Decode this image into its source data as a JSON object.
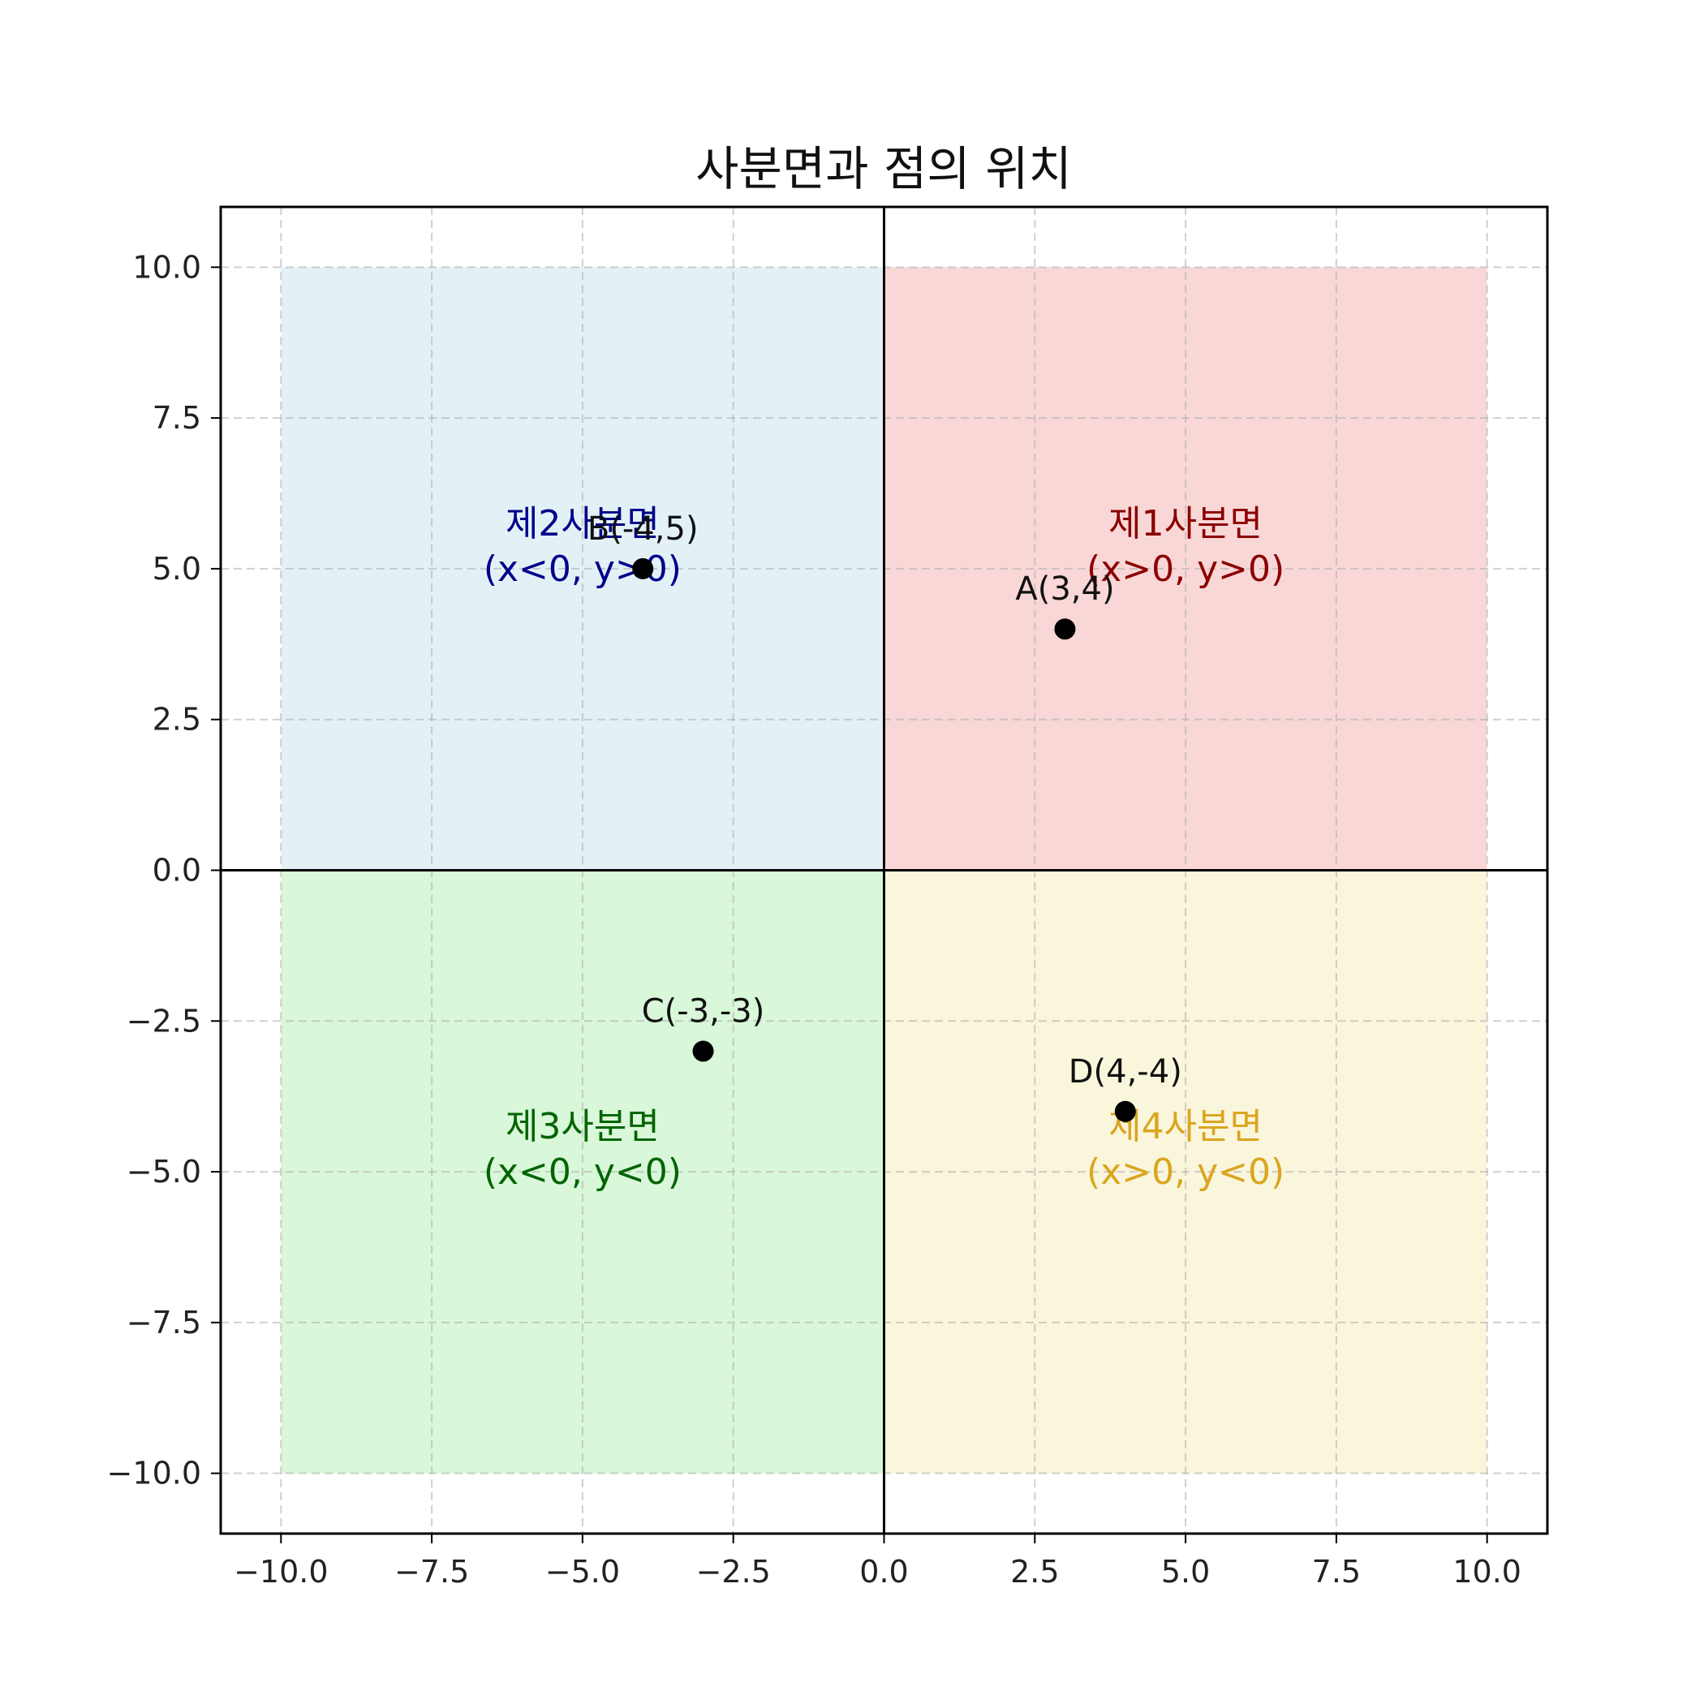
{
  "chart_data": {
    "type": "scatter",
    "title": "사분면과 점의 위치",
    "xlabel": "",
    "ylabel": "",
    "xlim": [
      -11,
      11
    ],
    "ylim": [
      -11,
      11
    ],
    "grid": true,
    "x_ticks": [
      -10,
      -7.5,
      -5,
      -2.5,
      0,
      2.5,
      5,
      7.5,
      10
    ],
    "y_ticks": [
      -10,
      -7.5,
      -5,
      -2.5,
      0,
      2.5,
      5,
      7.5,
      10
    ],
    "x_tick_labels": [
      "−10.0",
      "−7.5",
      "−5.0",
      "−2.5",
      "0.0",
      "2.5",
      "5.0",
      "7.5",
      "10.0"
    ],
    "y_tick_labels": [
      "−10.0",
      "−7.5",
      "−5.0",
      "−2.5",
      "0.0",
      "2.5",
      "5.0",
      "7.5",
      "10.0"
    ],
    "quadrants": [
      {
        "id": "q1",
        "x_range": [
          0,
          10
        ],
        "y_range": [
          0,
          10
        ],
        "fill": "#f4b6b6",
        "text_color": "#8b0000",
        "label_x": 5,
        "label_y": 5.5,
        "line1": "제1사분면",
        "line2": "(x>0, y>0)"
      },
      {
        "id": "q2",
        "x_range": [
          -10,
          0
        ],
        "y_range": [
          0,
          10
        ],
        "fill": "#cce6ef",
        "text_color": "#00008b",
        "label_x": -5,
        "label_y": 5.5,
        "line1": "제2사분면",
        "line2": "(x<0, y>0)"
      },
      {
        "id": "q3",
        "x_range": [
          -10,
          0
        ],
        "y_range": [
          -10,
          0
        ],
        "fill": "#b9f0b9",
        "text_color": "#006400",
        "label_x": -5,
        "label_y": -4.5,
        "line1": "제3사분면",
        "line2": "(x<0, y<0)"
      },
      {
        "id": "q4",
        "x_range": [
          0,
          10
        ],
        "y_range": [
          -10,
          0
        ],
        "fill": "#f6efbe",
        "text_color": "#daa520",
        "label_x": 5,
        "label_y": -4.5,
        "line1": "제4사분면",
        "line2": "(x>0, y<0)"
      }
    ],
    "points": [
      {
        "name": "A",
        "x": 3,
        "y": 4,
        "label": "A(3,4)"
      },
      {
        "name": "B",
        "x": -4,
        "y": 5,
        "label": "B(-4,5)"
      },
      {
        "name": "C",
        "x": -3,
        "y": -3,
        "label": "C(-3,-3)"
      },
      {
        "name": "D",
        "x": 4,
        "y": -4,
        "label": "D(4,-4)"
      }
    ],
    "point_color": "#000000"
  }
}
